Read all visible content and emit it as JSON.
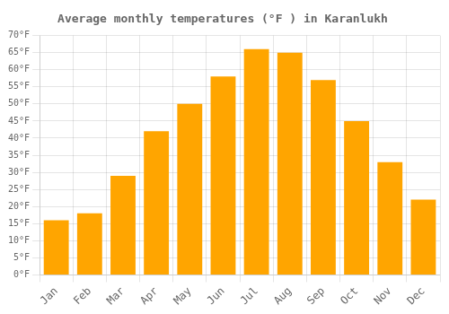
{
  "chart_data": {
    "type": "bar",
    "title": "Average monthly temperatures (°F ) in Karanlukh",
    "categories": [
      "Jan",
      "Feb",
      "Mar",
      "Apr",
      "May",
      "Jun",
      "Jul",
      "Aug",
      "Sep",
      "Oct",
      "Nov",
      "Dec"
    ],
    "values": [
      16,
      18,
      29,
      42,
      50,
      58,
      66,
      65,
      57,
      45,
      33,
      22
    ],
    "color": "#FFA500",
    "ylim": [
      0,
      70
    ],
    "yticks": [
      {
        "value": 0,
        "label": "0°F"
      },
      {
        "value": 5,
        "label": "5°F"
      },
      {
        "value": 10,
        "label": "10°F"
      },
      {
        "value": 15,
        "label": "15°F"
      },
      {
        "value": 20,
        "label": "20°F"
      },
      {
        "value": 25,
        "label": "25°F"
      },
      {
        "value": 30,
        "label": "30°F"
      },
      {
        "value": 35,
        "label": "35°F"
      },
      {
        "value": 40,
        "label": "40°F"
      },
      {
        "value": 45,
        "label": "45°F"
      },
      {
        "value": 50,
        "label": "50°F"
      },
      {
        "value": 55,
        "label": "55°F"
      },
      {
        "value": 60,
        "label": "60°F"
      },
      {
        "value": 65,
        "label": "65°F"
      },
      {
        "value": 70,
        "label": "70°F"
      }
    ],
    "grid": true
  }
}
